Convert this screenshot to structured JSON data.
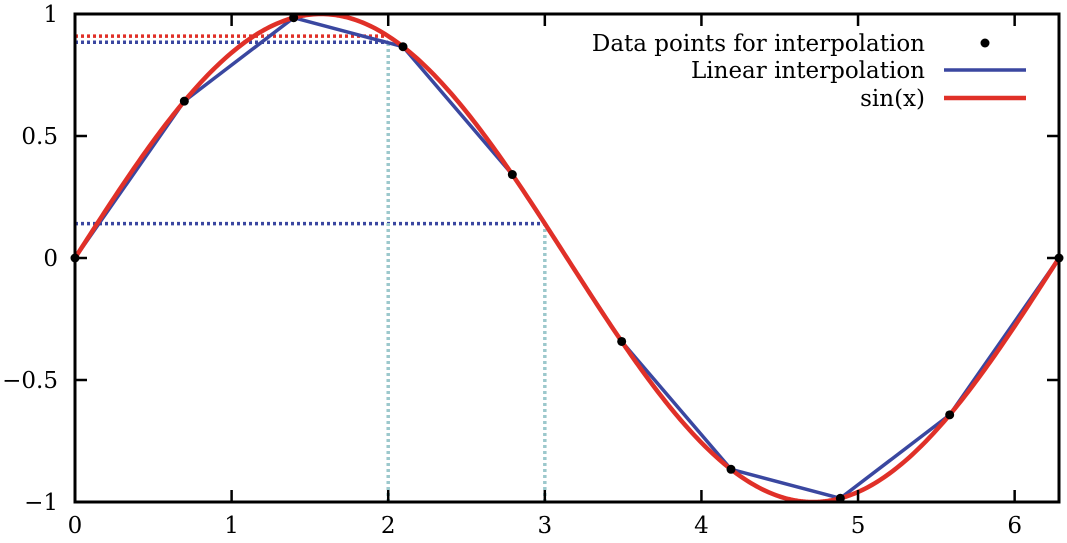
{
  "chart_data": {
    "type": "line",
    "title": "",
    "xlabel": "",
    "ylabel": "",
    "xlim": [
      0,
      6.2832
    ],
    "ylim": [
      -1,
      1
    ],
    "grid": false,
    "legend_position": "top-right",
    "x_ticks": [
      0,
      1,
      2,
      3,
      4,
      5,
      6
    ],
    "x_tick_labels": [
      "0",
      "1",
      "2",
      "3",
      "4",
      "5",
      "6"
    ],
    "y_ticks": [
      -1,
      -0.5,
      0,
      0.5,
      1
    ],
    "y_tick_labels": [
      "−1",
      "−0.5",
      "0",
      "0.5",
      "1"
    ],
    "series": [
      {
        "name": "Data points for interpolation",
        "kind": "points",
        "color": "#000000",
        "x": [
          0,
          0.6981,
          1.3963,
          2.0944,
          2.7925,
          3.4907,
          4.1888,
          4.8869,
          5.5851,
          6.2832
        ],
        "y": [
          0,
          0.6428,
          0.9848,
          0.866,
          0.342,
          -0.342,
          -0.866,
          -0.9848,
          -0.6428,
          0
        ]
      },
      {
        "name": "Linear interpolation",
        "kind": "polyline",
        "color": "#3a47a0",
        "x": [
          0,
          0.6981,
          1.3963,
          2.0944,
          2.7925,
          3.4907,
          4.1888,
          4.8869,
          5.5851,
          6.2832
        ],
        "y": [
          0,
          0.6428,
          0.9848,
          0.866,
          0.342,
          -0.342,
          -0.866,
          -0.9848,
          -0.6428,
          0
        ]
      },
      {
        "name": "sin(x)",
        "kind": "function",
        "function": "sin",
        "color": "#e03028"
      }
    ],
    "reference_lines": [
      {
        "kind": "horizontal",
        "y": 0.9093,
        "x_from": 0,
        "x_to": 2,
        "color": "#e03028"
      },
      {
        "kind": "horizontal",
        "y": 0.8841,
        "x_from": 0,
        "x_to": 2,
        "color": "#3a47a0"
      },
      {
        "kind": "horizontal",
        "y": 0.1411,
        "x_from": 0,
        "x_to": 3,
        "color": "#3a47a0"
      },
      {
        "kind": "vertical",
        "x": 2,
        "y_from": -1,
        "y_to": 0.8841,
        "color": "#9cc8cc"
      },
      {
        "kind": "vertical",
        "x": 3,
        "y_from": -1,
        "y_to": 0.1411,
        "color": "#9cc8cc"
      }
    ]
  }
}
